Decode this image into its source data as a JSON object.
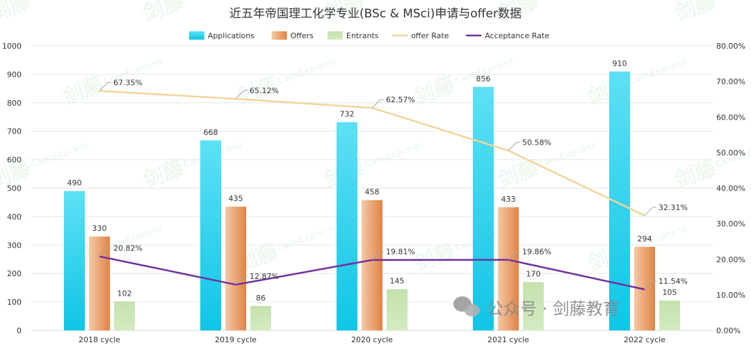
{
  "chart_data": {
    "type": "bar",
    "title": "近五年帝国理工化学专业(BSc & MSci)申请与offer数据",
    "categories": [
      "2018 cycle",
      "2019 cycle",
      "2020 cycle",
      "2021 cycle",
      "2022 cycle"
    ],
    "series": [
      {
        "name": "Applications",
        "kind": "bar",
        "axis": "left",
        "color": "#1ec8e8",
        "values": [
          490,
          668,
          732,
          856,
          910
        ]
      },
      {
        "name": "Offers",
        "kind": "bar",
        "axis": "left",
        "color": "#e2894e",
        "values": [
          330,
          435,
          458,
          433,
          294
        ]
      },
      {
        "name": "Entrants",
        "kind": "bar",
        "axis": "left",
        "color": "#c6e2b0",
        "values": [
          102,
          86,
          145,
          170,
          105
        ]
      },
      {
        "name": "offer Rate",
        "kind": "line",
        "axis": "right",
        "color": "#f2d59a",
        "values": [
          67.35,
          65.12,
          62.57,
          50.58,
          32.31
        ],
        "labels": [
          "67.35%",
          "65.12%",
          "62.57%",
          "50.58%",
          "32.31%"
        ]
      },
      {
        "name": "Acceptance Rate",
        "kind": "line",
        "axis": "right",
        "color": "#7030a0",
        "values": [
          20.82,
          12.87,
          19.81,
          19.86,
          11.54
        ],
        "labels": [
          "20.82%",
          "12.87%",
          "19.81%",
          "19.86%",
          "11.54%"
        ]
      }
    ],
    "ylim_left": [
      0,
      1000
    ],
    "yticks_left": [
      "0",
      "100",
      "200",
      "300",
      "400",
      "500",
      "600",
      "700",
      "800",
      "900",
      "1000"
    ],
    "ylim_right": [
      0,
      80
    ],
    "yticks_right": [
      "0.00%",
      "10.00%",
      "20.00%",
      "30.00%",
      "40.00%",
      "50.00%",
      "60.00%",
      "70.00%",
      "80.00%"
    ],
    "grid": true,
    "legend_position": "top-center"
  },
  "watermark": {
    "text": "剑藤",
    "sub": "CamExpress",
    "badge": "公众号 · 剑藤教育"
  },
  "colors": {
    "grid": "#e6e6e6",
    "text": "#333333"
  }
}
